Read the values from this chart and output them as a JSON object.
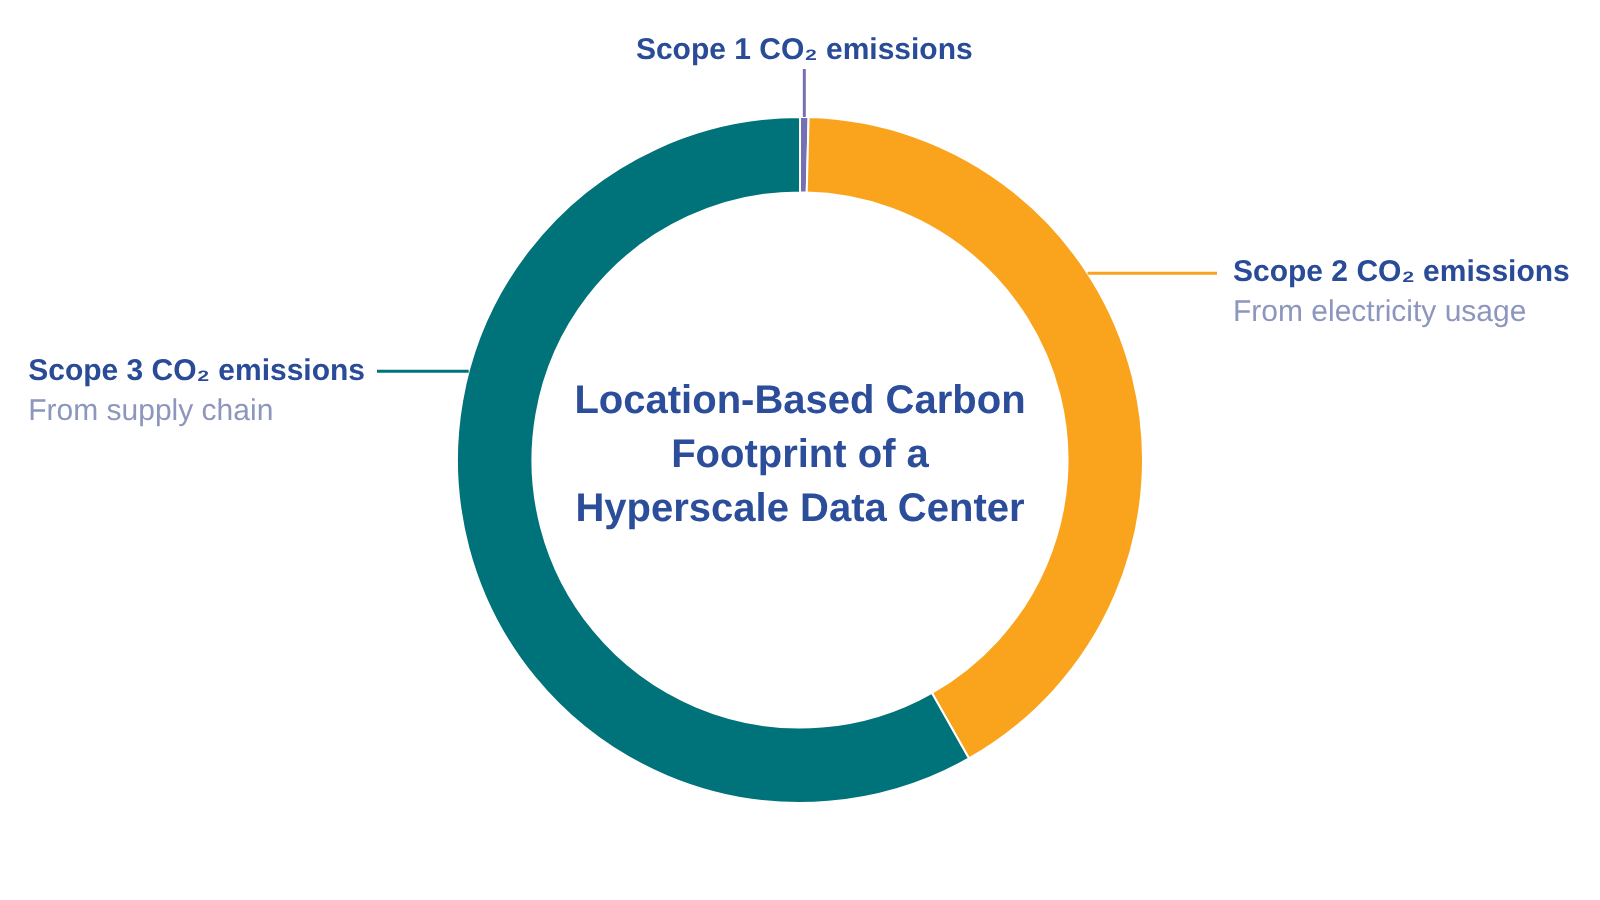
{
  "chart_data": {
    "type": "donut",
    "title": "Location-Based Carbon Footprint of a Hyperscale Data Center",
    "categories": [
      "Scope 1 CO₂ emissions",
      "Scope 2 CO₂ emissions",
      "Scope 3 CO₂ emissions"
    ],
    "values": [
      0.4,
      41.4,
      58.2
    ],
    "colors": [
      "#7570b3",
      "#faa41e",
      "#00737a"
    ],
    "annotations": [
      {
        "text": "From electricity usage",
        "x": "Scope 2 CO₂ emissions"
      },
      {
        "text": "From supply chain",
        "x": "Scope 3 CO₂ emissions"
      }
    ]
  }
}
